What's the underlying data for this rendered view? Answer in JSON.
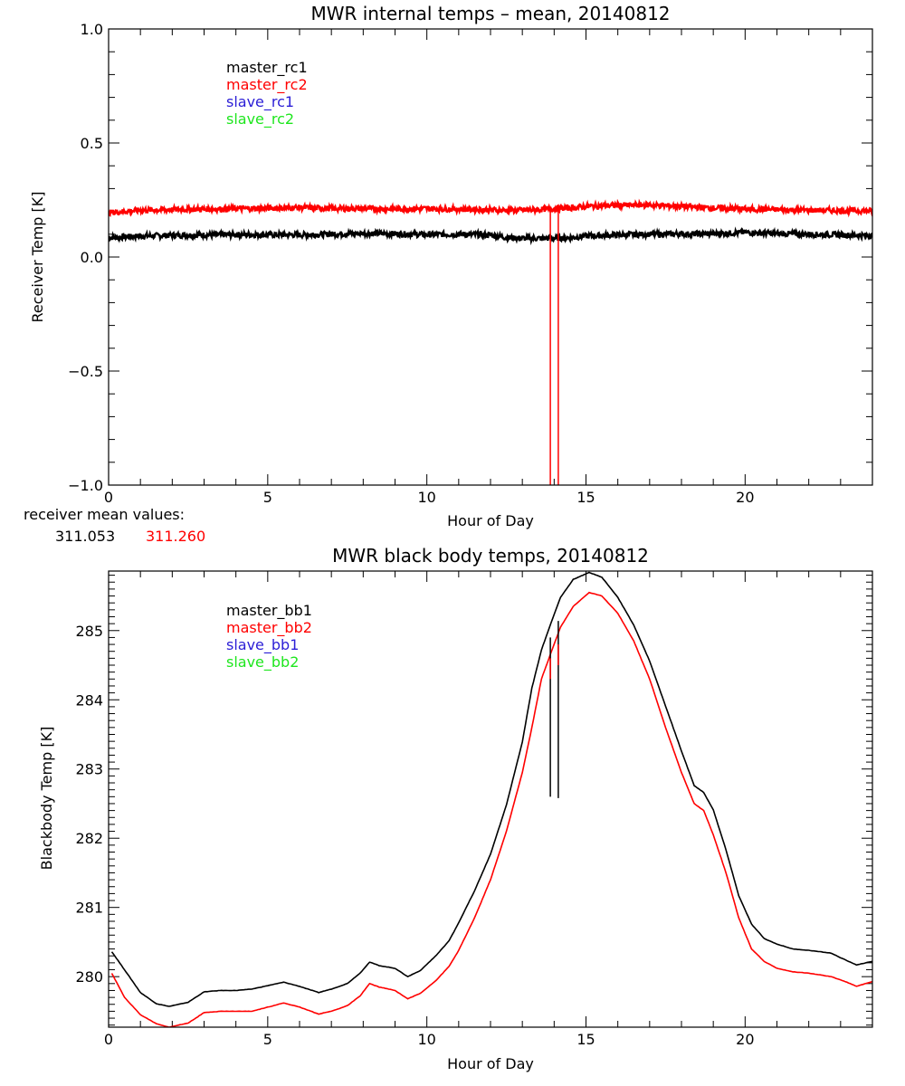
{
  "chart_data": [
    {
      "type": "line",
      "title": "MWR internal temps – mean, 20140812",
      "xlabel": "Hour of Day",
      "ylabel": "Receiver Temp [K]",
      "xlim": [
        0,
        24
      ],
      "ylim": [
        -1.0,
        1.0
      ],
      "xticks": [
        "0",
        "5",
        "10",
        "15",
        "20"
      ],
      "yticks": [
        "1.0",
        "0.5",
        "0.0",
        "-0.5",
        "-1.0"
      ],
      "legend_position": "top-left",
      "grid": false,
      "series": [
        {
          "name": "master_rc1",
          "color": "#000000",
          "x": [
            0,
            1,
            2,
            3,
            4,
            5,
            6,
            7,
            8,
            9,
            10,
            11,
            12,
            12.5,
            13,
            13.5,
            14,
            14.5,
            15,
            16,
            17,
            18,
            19,
            20,
            21,
            22,
            23,
            24
          ],
          "y": [
            0.085,
            0.092,
            0.095,
            0.097,
            0.098,
            0.098,
            0.097,
            0.1,
            0.104,
            0.102,
            0.098,
            0.1,
            0.097,
            0.085,
            0.082,
            0.082,
            0.082,
            0.085,
            0.092,
            0.097,
            0.1,
            0.101,
            0.102,
            0.108,
            0.103,
            0.1,
            0.097,
            0.094
          ]
        },
        {
          "name": "master_rc2",
          "color": "#ff0000",
          "x": [
            0,
            1,
            2,
            3,
            4,
            5,
            6,
            7,
            8,
            9,
            10,
            11,
            12,
            12.5,
            13,
            13.5,
            14,
            14.5,
            15,
            16,
            17,
            18,
            19,
            20,
            21,
            22,
            23,
            24
          ],
          "y": [
            0.195,
            0.205,
            0.208,
            0.21,
            0.212,
            0.214,
            0.217,
            0.213,
            0.212,
            0.211,
            0.212,
            0.21,
            0.207,
            0.205,
            0.205,
            0.208,
            0.212,
            0.215,
            0.222,
            0.227,
            0.228,
            0.222,
            0.215,
            0.21,
            0.208,
            0.205,
            0.204,
            0.202
          ]
        },
        {
          "name": "slave_rc1",
          "color": "#2b1ed6",
          "x": [],
          "y": []
        },
        {
          "name": "slave_rc2",
          "color": "#1ee61e",
          "x": [],
          "y": []
        }
      ],
      "spikes": [
        {
          "series": "master_rc2",
          "x": 13.88,
          "from": 0.21,
          "to": -1.0
        },
        {
          "series": "master_rc2",
          "x": 14.13,
          "from": 0.21,
          "to": -1.0
        }
      ],
      "annotation": {
        "label": "receiver mean values:",
        "values": [
          {
            "text": "311.053",
            "color": "#000000"
          },
          {
            "text": "311.260",
            "color": "#ff0000"
          }
        ]
      }
    },
    {
      "type": "line",
      "title": "MWR black body temps, 20140812",
      "xlabel": "Hour of Day",
      "ylabel": "Blackbody Temp [K]",
      "xlim": [
        0,
        24
      ],
      "ylim": [
        279.27,
        285.86
      ],
      "xticks": [
        "0",
        "5",
        "10",
        "15",
        "20"
      ],
      "yticks": [
        "285",
        "284",
        "283",
        "282",
        "281",
        "280"
      ],
      "legend_position": "top-left",
      "grid": false,
      "series": [
        {
          "name": "master_bb1",
          "color": "#000000",
          "x": [
            0.1,
            0.5,
            1,
            1.5,
            1.9,
            2.5,
            3,
            3.5,
            4,
            4.5,
            5,
            5.5,
            6,
            6.6,
            7,
            7.5,
            7.9,
            8.2,
            8.5,
            9,
            9.4,
            9.8,
            10.3,
            10.7,
            11,
            11.5,
            12,
            12.5,
            13,
            13.3,
            13.6,
            13.9,
            14.2,
            14.6,
            15.1,
            15.5,
            16,
            16.5,
            17,
            17.5,
            18,
            18.4,
            18.7,
            19,
            19.4,
            19.8,
            20.2,
            20.6,
            21,
            21.5,
            22,
            22.7,
            23.2,
            23.5,
            24
          ],
          "y": [
            280.36,
            280.1,
            279.77,
            279.61,
            279.57,
            279.63,
            279.78,
            279.8,
            279.8,
            279.82,
            279.87,
            279.92,
            279.86,
            279.77,
            279.82,
            279.9,
            280.05,
            280.21,
            280.16,
            280.12,
            280.0,
            280.09,
            280.31,
            280.52,
            280.78,
            281.24,
            281.77,
            282.48,
            283.39,
            284.17,
            284.72,
            285.11,
            285.48,
            285.74,
            285.84,
            285.77,
            285.48,
            285.08,
            284.56,
            283.91,
            283.26,
            282.76,
            282.66,
            282.41,
            281.83,
            281.17,
            280.76,
            280.55,
            280.47,
            280.4,
            280.38,
            280.34,
            280.23,
            280.17,
            280.22
          ]
        },
        {
          "name": "master_bb2",
          "color": "#ff0000",
          "x": [
            0.1,
            0.5,
            1,
            1.5,
            1.9,
            2.5,
            3,
            3.5,
            4,
            4.5,
            5,
            5.5,
            6,
            6.6,
            7,
            7.5,
            7.9,
            8.2,
            8.5,
            9,
            9.4,
            9.8,
            10.3,
            10.7,
            11,
            11.5,
            12,
            12.5,
            13,
            13.3,
            13.6,
            13.9,
            14.2,
            14.6,
            15.1,
            15.5,
            16,
            16.5,
            17,
            17.5,
            18,
            18.4,
            18.7,
            19,
            19.4,
            19.8,
            20.2,
            20.6,
            21,
            21.5,
            22,
            22.7,
            23.2,
            23.5,
            24
          ],
          "y": [
            280.05,
            279.7,
            279.45,
            279.32,
            279.27,
            279.33,
            279.48,
            279.5,
            279.5,
            279.5,
            279.56,
            279.62,
            279.56,
            279.46,
            279.5,
            279.58,
            279.72,
            279.9,
            279.85,
            279.8,
            279.68,
            279.76,
            279.95,
            280.15,
            280.38,
            280.85,
            281.4,
            282.1,
            282.95,
            283.6,
            284.3,
            284.68,
            285.05,
            285.35,
            285.55,
            285.5,
            285.25,
            284.85,
            284.3,
            283.6,
            282.95,
            282.5,
            282.4,
            282.05,
            281.5,
            280.85,
            280.4,
            280.22,
            280.12,
            280.07,
            280.05,
            280.0,
            279.92,
            279.86,
            279.93
          ]
        },
        {
          "name": "slave_bb1",
          "color": "#2b1ed6",
          "x": [],
          "y": []
        },
        {
          "name": "slave_bb2",
          "color": "#1ee61e",
          "x": [],
          "y": []
        }
      ],
      "spikes": [
        {
          "series": "master_bb1",
          "x": 13.88,
          "from": 284.9,
          "to": 282.6
        },
        {
          "series": "master_bb1",
          "x": 14.13,
          "from": 285.14,
          "to": 282.58
        },
        {
          "series": "master_bb2",
          "x": 13.88,
          "from": 284.6,
          "to": 284.3
        },
        {
          "series": "master_bb2",
          "x": 14.13,
          "from": 284.8,
          "to": 284.5
        }
      ]
    }
  ]
}
